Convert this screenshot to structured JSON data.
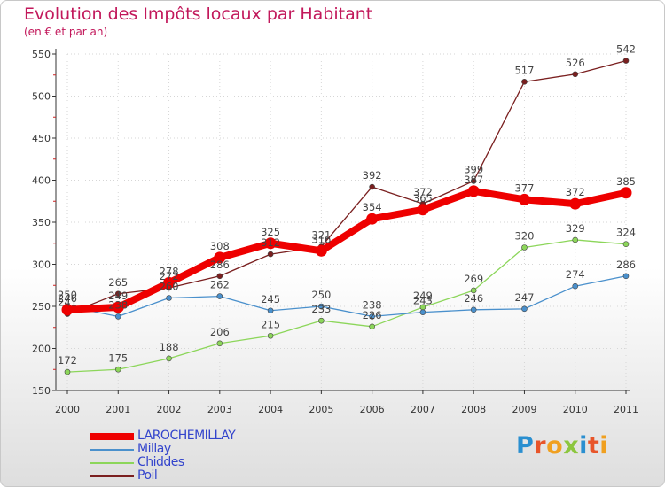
{
  "title": "Evolution des Impôts locaux par Habitant",
  "subtitle": "(en € et par an)",
  "logo": {
    "letters": [
      "P",
      "r",
      "o",
      "x",
      "i",
      "t",
      "i"
    ],
    "colors": [
      "#2a8fd0",
      "#e8552a",
      "#f0a020",
      "#8cc63f",
      "#2a8fd0",
      "#e8552a",
      "#f0a020"
    ]
  },
  "chart_data": {
    "type": "line",
    "title": "Evolution des Impôts locaux par Habitant",
    "subtitle": "(en € et par an)",
    "xlabel": "",
    "ylabel": "",
    "x": [
      "2000",
      "2001",
      "2002",
      "2003",
      "2004",
      "2005",
      "2006",
      "2007",
      "2008",
      "2009",
      "2010",
      "2011"
    ],
    "ylim": [
      150,
      550
    ],
    "yticks": [
      "150",
      "200",
      "250",
      "300",
      "350",
      "400",
      "450",
      "500",
      "550"
    ],
    "grid": true,
    "legend_position": "bottom-left",
    "series": [
      {
        "name": "LAROCHEMILLAY",
        "color": "#ee0000",
        "values": [
          246,
          249,
          278,
          308,
          325,
          316,
          354,
          365,
          387,
          377,
          372,
          385
        ],
        "labels": [
          "246",
          "249",
          "278",
          "308",
          "325",
          "316",
          "354",
          "365",
          "387",
          "377",
          "372",
          "385"
        ]
      },
      {
        "name": "Millay",
        "color": "#4a90cc",
        "values": [
          250,
          238,
          260,
          262,
          245,
          250,
          238,
          243,
          246,
          247,
          274,
          286
        ],
        "labels": [
          "250",
          "238",
          "260",
          "262",
          "245",
          "250",
          "238",
          "243",
          "246",
          "247",
          "274",
          "286"
        ]
      },
      {
        "name": "Chiddes",
        "color": "#8cd65a",
        "values": [
          172,
          175,
          188,
          206,
          215,
          233,
          226,
          249,
          269,
          320,
          329,
          324
        ],
        "labels": [
          "172",
          "175",
          "188",
          "206",
          "215",
          "233",
          "226",
          "249",
          "269",
          "320",
          "329",
          "324"
        ]
      },
      {
        "name": "Poil",
        "color": "#7a1f1f",
        "values": [
          241,
          265,
          272,
          286,
          312,
          321,
          392,
          372,
          399,
          517,
          526,
          542
        ],
        "labels": [
          "241",
          "265",
          "272",
          "286",
          "312",
          "321",
          "392",
          "372",
          "399",
          "517",
          "526",
          "542"
        ]
      }
    ]
  }
}
